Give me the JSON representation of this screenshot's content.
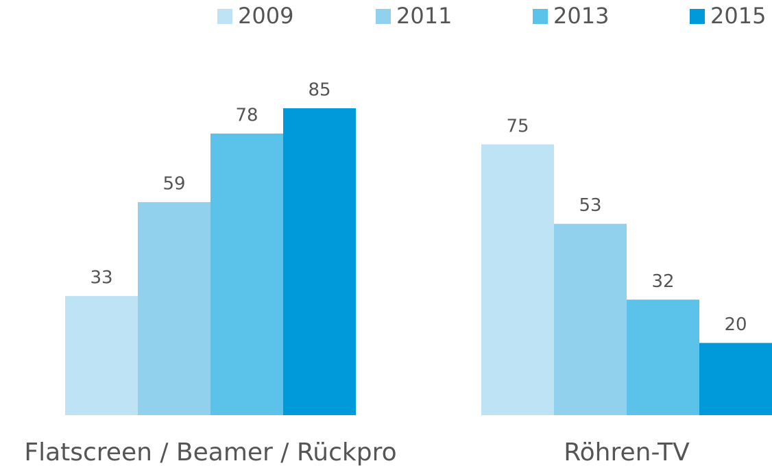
{
  "chart_data": {
    "type": "bar",
    "categories": [
      "Flatscreen / Beamer / Rückpro",
      "Röhren-TV"
    ],
    "series": [
      {
        "name": "2009",
        "color": "#bde3f4",
        "values": [
          33,
          75
        ]
      },
      {
        "name": "2011",
        "color": "#92d1ee",
        "values": [
          59,
          53
        ]
      },
      {
        "name": "2013",
        "color": "#5bc2ea",
        "values": [
          78,
          32
        ]
      },
      {
        "name": "2015",
        "color": "#0099d9",
        "values": [
          85,
          20
        ]
      }
    ],
    "ylim": [
      0,
      100
    ],
    "legend": "top-right"
  }
}
